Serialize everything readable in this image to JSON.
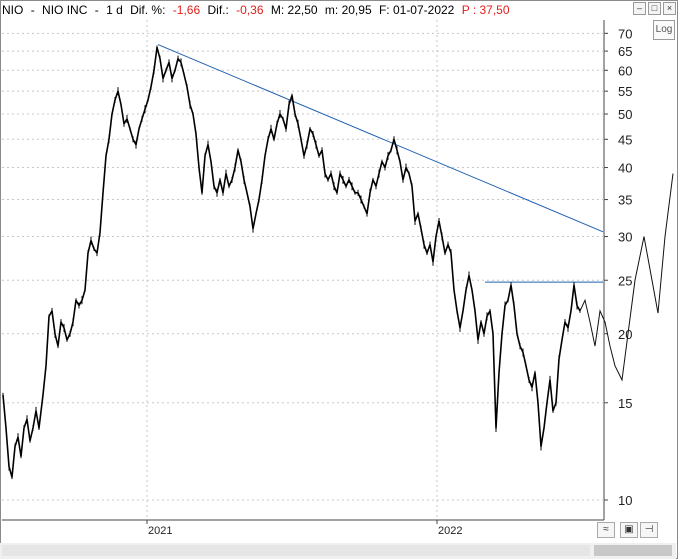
{
  "header": {
    "symbol": "NIO",
    "sep1": "-",
    "name": "NIO INC",
    "sep2": "-",
    "period": "1 d",
    "dif_pct_label": "Dif. %:",
    "dif_pct_value": "-1,66",
    "dif_label": "Dif.:",
    "dif_value": "-0,36",
    "max_label": "M: 22,50",
    "min_label": "m: 20,95",
    "date_label": "F: 01-07-2022",
    "p_label": "P : 37,50"
  },
  "controls": {
    "log_label": "Log",
    "minimize": "–",
    "maximize": "□",
    "close": "×"
  },
  "chart_data": {
    "type": "line",
    "scale": "log",
    "ylim": [
      9.2,
      74
    ],
    "y_ticks": [
      10,
      15,
      20,
      25,
      30,
      35,
      40,
      45,
      50,
      55,
      60,
      65,
      70
    ],
    "x_ticks": [
      "2021",
      "2022"
    ],
    "grid": true,
    "series": [
      {
        "values": [
          [
            0,
            15.5
          ],
          [
            3,
            13.5
          ],
          [
            6,
            11.5
          ],
          [
            9,
            11
          ],
          [
            12,
            12.5
          ],
          [
            15,
            13
          ],
          [
            18,
            12
          ],
          [
            21,
            13.5
          ],
          [
            24,
            14
          ],
          [
            27,
            12.8
          ],
          [
            30,
            13.5
          ],
          [
            33,
            14.5
          ],
          [
            36,
            13.5
          ],
          [
            40,
            15.5
          ],
          [
            43,
            17.5
          ],
          [
            46,
            21.5
          ],
          [
            49,
            22
          ],
          [
            52,
            20
          ],
          [
            55,
            19
          ],
          [
            58,
            21
          ],
          [
            61,
            20.5
          ],
          [
            64,
            19.5
          ],
          [
            67,
            20
          ],
          [
            70,
            21
          ],
          [
            73,
            23
          ],
          [
            76,
            22.5
          ],
          [
            79,
            23
          ],
          [
            82,
            24
          ],
          [
            85,
            28
          ],
          [
            88,
            29.5
          ],
          [
            91,
            28.5
          ],
          [
            94,
            28
          ],
          [
            97,
            30.5
          ],
          [
            100,
            36
          ],
          [
            103,
            42
          ],
          [
            106,
            45
          ],
          [
            109,
            50
          ],
          [
            112,
            53
          ],
          [
            115,
            55
          ],
          [
            118,
            52
          ],
          [
            121,
            48
          ],
          [
            124,
            49
          ],
          [
            127,
            47
          ],
          [
            130,
            45
          ],
          [
            133,
            44
          ],
          [
            136,
            47
          ],
          [
            139,
            49
          ],
          [
            142,
            51
          ],
          [
            145,
            53
          ],
          [
            148,
            56
          ],
          [
            151,
            60
          ],
          [
            154,
            66
          ],
          [
            157,
            63
          ],
          [
            160,
            58
          ],
          [
            163,
            60
          ],
          [
            166,
            62
          ],
          [
            169,
            58
          ],
          [
            172,
            60
          ],
          [
            175,
            63
          ],
          [
            178,
            62
          ],
          [
            181,
            59
          ],
          [
            184,
            56
          ],
          [
            187,
            52
          ],
          [
            190,
            50
          ],
          [
            193,
            46
          ],
          [
            196,
            40
          ],
          [
            199,
            36
          ],
          [
            202,
            42
          ],
          [
            205,
            44
          ],
          [
            208,
            41
          ],
          [
            211,
            37
          ],
          [
            214,
            36
          ],
          [
            217,
            38
          ],
          [
            220,
            36
          ],
          [
            223,
            39
          ],
          [
            226,
            37
          ],
          [
            229,
            38
          ],
          [
            232,
            40
          ],
          [
            235,
            43
          ],
          [
            238,
            41
          ],
          [
            241,
            38
          ],
          [
            244,
            36
          ],
          [
            247,
            34
          ],
          [
            250,
            31
          ],
          [
            253,
            33
          ],
          [
            256,
            35
          ],
          [
            259,
            38
          ],
          [
            262,
            42
          ],
          [
            265,
            45
          ],
          [
            268,
            47
          ],
          [
            271,
            45
          ],
          [
            274,
            48
          ],
          [
            277,
            50
          ],
          [
            280,
            49
          ],
          [
            283,
            47
          ],
          [
            286,
            52
          ],
          [
            289,
            54
          ],
          [
            292,
            50
          ],
          [
            295,
            48
          ],
          [
            298,
            45
          ],
          [
            301,
            42
          ],
          [
            304,
            44
          ],
          [
            307,
            47
          ],
          [
            310,
            46
          ],
          [
            313,
            44
          ],
          [
            316,
            42
          ],
          [
            319,
            43
          ],
          [
            322,
            39
          ],
          [
            325,
            38
          ],
          [
            328,
            39
          ],
          [
            331,
            37
          ],
          [
            334,
            36
          ],
          [
            337,
            39
          ],
          [
            340,
            38
          ],
          [
            343,
            37
          ],
          [
            346,
            38
          ],
          [
            349,
            37
          ],
          [
            352,
            36
          ],
          [
            355,
            36
          ],
          [
            358,
            35
          ],
          [
            361,
            34
          ],
          [
            364,
            33
          ],
          [
            367,
            36
          ],
          [
            370,
            38
          ],
          [
            373,
            37
          ],
          [
            376,
            39
          ],
          [
            379,
            41
          ],
          [
            382,
            40
          ],
          [
            385,
            42
          ],
          [
            388,
            43
          ],
          [
            391,
            45
          ],
          [
            394,
            43
          ],
          [
            397,
            41
          ],
          [
            400,
            38
          ],
          [
            403,
            40
          ],
          [
            406,
            39
          ],
          [
            409,
            37
          ],
          [
            412,
            32
          ],
          [
            415,
            33
          ],
          [
            418,
            31
          ],
          [
            421,
            29
          ],
          [
            424,
            28
          ],
          [
            427,
            29
          ],
          [
            430,
            27
          ],
          [
            433,
            30
          ],
          [
            436,
            32
          ],
          [
            439,
            30
          ],
          [
            442,
            28
          ],
          [
            445,
            29
          ],
          [
            448,
            28
          ],
          [
            451,
            24
          ],
          [
            454,
            22
          ],
          [
            457,
            20.5
          ],
          [
            460,
            22
          ],
          [
            463,
            24
          ],
          [
            466,
            25.5
          ],
          [
            469,
            24
          ],
          [
            472,
            22
          ],
          [
            475,
            19.5
          ],
          [
            478,
            21
          ],
          [
            481,
            20
          ],
          [
            484,
            21.5
          ],
          [
            487,
            22
          ],
          [
            490,
            20
          ],
          [
            493,
            13.5
          ],
          [
            496,
            17
          ],
          [
            499,
            20
          ],
          [
            502,
            22.5
          ],
          [
            505,
            23
          ],
          [
            508,
            24.5
          ],
          [
            511,
            22.5
          ],
          [
            514,
            20
          ],
          [
            517,
            19
          ],
          [
            520,
            18.5
          ],
          [
            523,
            17.5
          ],
          [
            526,
            16.5
          ],
          [
            529,
            16
          ],
          [
            532,
            17
          ],
          [
            535,
            15
          ],
          [
            538,
            12.5
          ],
          [
            541,
            13.5
          ],
          [
            544,
            15
          ],
          [
            547,
            16.5
          ],
          [
            550,
            14.5
          ],
          [
            553,
            15
          ],
          [
            556,
            18
          ],
          [
            559,
            19.5
          ],
          [
            562,
            21
          ],
          [
            565,
            20.5
          ],
          [
            568,
            22
          ],
          [
            571,
            24.5
          ],
          [
            574,
            22.5
          ],
          [
            577,
            22
          ]
        ]
      }
    ],
    "annotations": {
      "trendline": [
        [
          155,
          66.8
        ],
        [
          600,
          30.6
        ]
      ],
      "horizontal_level": {
        "x_range": [
          482,
          600
        ],
        "y": 24.8
      },
      "projection": [
        [
          577,
          22
        ],
        [
          582,
          23
        ],
        [
          587,
          21
        ],
        [
          592,
          19
        ],
        [
          597,
          22
        ],
        [
          602,
          21
        ],
        [
          607,
          19
        ],
        [
          612,
          17.5
        ],
        [
          619,
          16.5
        ],
        [
          625,
          20
        ],
        [
          632,
          25
        ],
        [
          641,
          30
        ],
        [
          649,
          25
        ],
        [
          655,
          21.8
        ],
        [
          662,
          30
        ],
        [
          670,
          39
        ]
      ]
    }
  }
}
